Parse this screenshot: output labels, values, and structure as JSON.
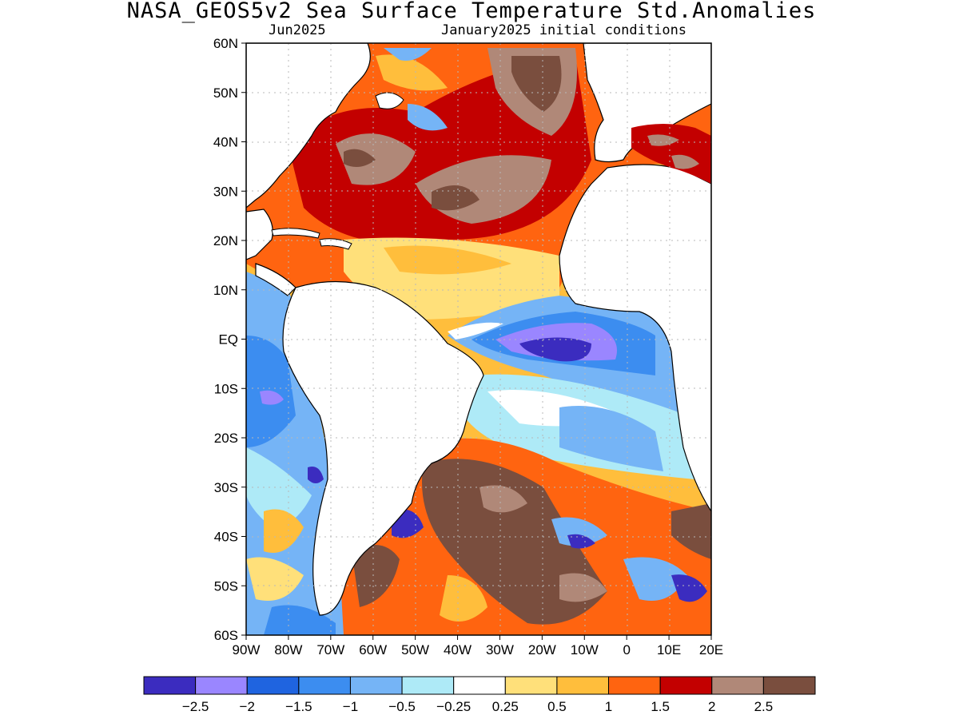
{
  "title": "NASA_GEOS5v2 Sea Surface Temperature Std.Anomalies",
  "subtitle_left": "Jun2025",
  "subtitle_right": "January2025 initial conditions",
  "map": {
    "lon_range": [
      -90,
      20
    ],
    "lat_range": [
      -60,
      60
    ],
    "lat_ticks": [
      {
        "value": 60,
        "label": "60N"
      },
      {
        "value": 50,
        "label": "50N"
      },
      {
        "value": 40,
        "label": "40N"
      },
      {
        "value": 30,
        "label": "30N"
      },
      {
        "value": 20,
        "label": "20N"
      },
      {
        "value": 10,
        "label": "10N"
      },
      {
        "value": 0,
        "label": "EQ"
      },
      {
        "value": -10,
        "label": "10S"
      },
      {
        "value": -20,
        "label": "20S"
      },
      {
        "value": -30,
        "label": "30S"
      },
      {
        "value": -40,
        "label": "40S"
      },
      {
        "value": -50,
        "label": "50S"
      },
      {
        "value": -60,
        "label": "60S"
      }
    ],
    "lon_ticks": [
      {
        "value": -90,
        "label": "90W"
      },
      {
        "value": -80,
        "label": "80W"
      },
      {
        "value": -70,
        "label": "70W"
      },
      {
        "value": -60,
        "label": "60W"
      },
      {
        "value": -50,
        "label": "50W"
      },
      {
        "value": -40,
        "label": "40W"
      },
      {
        "value": -30,
        "label": "30W"
      },
      {
        "value": -20,
        "label": "20W"
      },
      {
        "value": -10,
        "label": "10W"
      },
      {
        "value": 0,
        "label": "0"
      },
      {
        "value": 10,
        "label": "10E"
      },
      {
        "value": 20,
        "label": "20E"
      }
    ],
    "land_color": "#ffffff",
    "grid": true
  },
  "colorbar": {
    "colors": [
      "#3b2cbf",
      "#9a86ff",
      "#1f64e0",
      "#3c8df0",
      "#75b4f6",
      "#aeeaf7",
      "#ffffff",
      "#ffe07a",
      "#ffbe3c",
      "#ff6410",
      "#c30000",
      "#b08878",
      "#7a4e3e"
    ],
    "labels": [
      "−2.5",
      "−2",
      "−1.5",
      "−1",
      "−0.5",
      "−0.25",
      "0.25",
      "0.5",
      "1",
      "1.5",
      "2",
      "2.5"
    ]
  }
}
